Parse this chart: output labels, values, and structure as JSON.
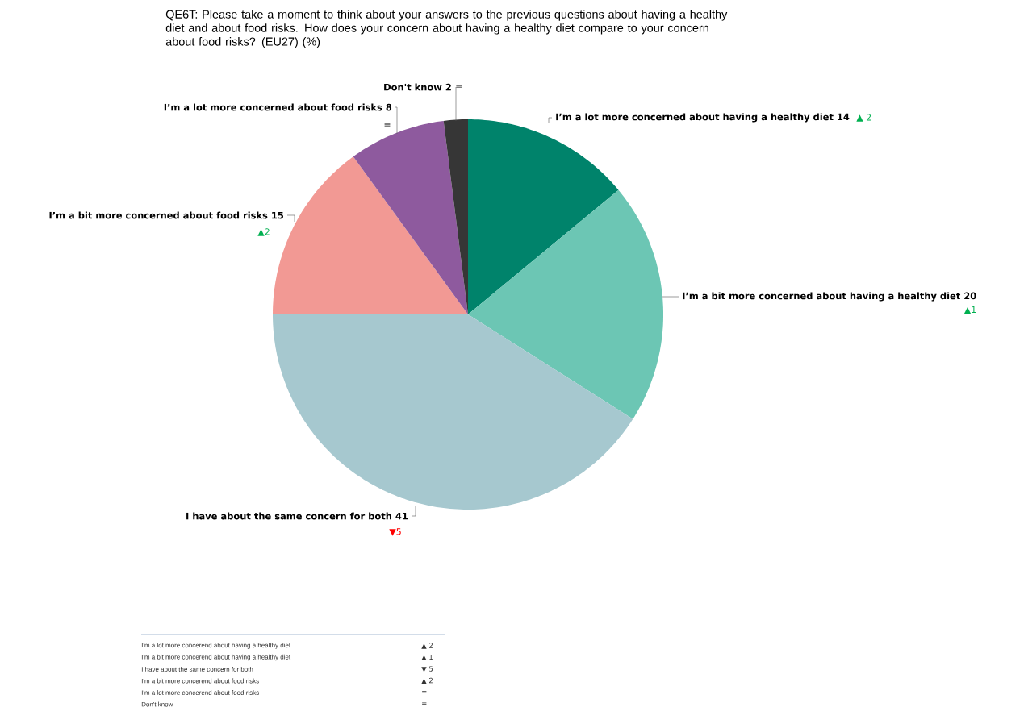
{
  "chart_data": {
    "type": "pie",
    "title": "QE6T: Please take a moment to think about your answers to the previous questions about having a healthy diet and about food risks. How does your concern about having a healthy diet compare to your concern about food risks? (EU27) (%)",
    "categories": [
      "I’m a lot more concerned about having a healthy diet",
      "I’m a bit more concerned about having a healthy diet",
      "I have about the same concern for both",
      "I’m a bit more concerned about food risks",
      "I’m a lot more concerned about food risks",
      "Don't know"
    ],
    "values": [
      14,
      20,
      41,
      15,
      8,
      2
    ],
    "colors": [
      "#00836b",
      "#6cc6b4",
      "#a6c8cf",
      "#f29994",
      "#8e5a9e",
      "#363636"
    ],
    "data_labels": true,
    "annotations": [
      "▲ 2",
      "▲1",
      "▼5",
      "▲2",
      "=",
      "=",
      "I'm a lot more concerend about having a healthy diet",
      "I'm a bit more concerend about having a healthy diet",
      "I have about the same concern for both",
      "I'm a bit more concerend about food risks",
      "I'm a lot more concerend about food risks",
      "Don't know",
      "▲ 2",
      "▲ 1",
      "▼ 5",
      "▲ 2",
      "=",
      "="
    ]
  }
}
